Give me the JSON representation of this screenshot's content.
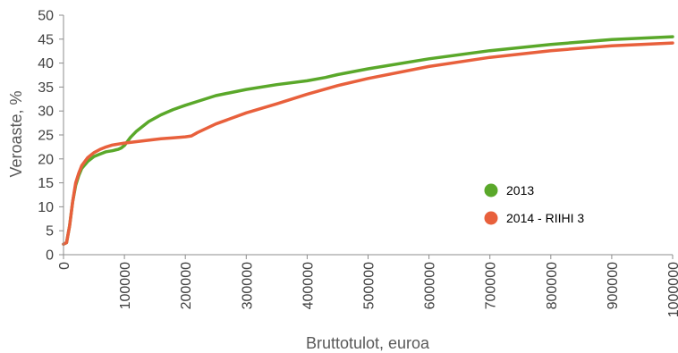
{
  "chart_data": {
    "type": "line",
    "title": "",
    "xlabel": "Bruttotulot, euroa",
    "ylabel": "Veroaste, %",
    "xlim": [
      0,
      1000000
    ],
    "ylim": [
      0,
      50
    ],
    "x_ticks": [
      "0",
      "100000",
      "200000",
      "300000",
      "400000",
      "500000",
      "600000",
      "700000",
      "800000",
      "900000",
      "1000000"
    ],
    "y_ticks": [
      "0",
      "5",
      "10",
      "15",
      "20",
      "25",
      "30",
      "35",
      "40",
      "45",
      "50"
    ],
    "grid": false,
    "legend_position": "right",
    "series": [
      {
        "name": "2013",
        "color": "#5aa82a",
        "points": [
          [
            0,
            2.2
          ],
          [
            5000,
            2.5
          ],
          [
            10000,
            6
          ],
          [
            15000,
            11
          ],
          [
            20000,
            14.5
          ],
          [
            25000,
            16.5
          ],
          [
            30000,
            18
          ],
          [
            40000,
            19.5
          ],
          [
            50000,
            20.5
          ],
          [
            60000,
            21
          ],
          [
            70000,
            21.5
          ],
          [
            80000,
            21.7
          ],
          [
            90000,
            22
          ],
          [
            95000,
            22.3
          ],
          [
            100000,
            22.8
          ],
          [
            110000,
            24.5
          ],
          [
            120000,
            25.8
          ],
          [
            140000,
            27.8
          ],
          [
            160000,
            29.2
          ],
          [
            180000,
            30.3
          ],
          [
            200000,
            31.2
          ],
          [
            220000,
            32
          ],
          [
            250000,
            33.2
          ],
          [
            300000,
            34.5
          ],
          [
            350000,
            35.5
          ],
          [
            400000,
            36.3
          ],
          [
            430000,
            37
          ],
          [
            450000,
            37.6
          ],
          [
            500000,
            38.8
          ],
          [
            600000,
            40.9
          ],
          [
            700000,
            42.6
          ],
          [
            800000,
            43.9
          ],
          [
            900000,
            44.9
          ],
          [
            1000000,
            45.5
          ]
        ]
      },
      {
        "name": "2014 - RIIHI 3",
        "color": "#e8603c",
        "points": [
          [
            0,
            2.2
          ],
          [
            5000,
            2.5
          ],
          [
            10000,
            6
          ],
          [
            15000,
            11
          ],
          [
            20000,
            15
          ],
          [
            25000,
            17
          ],
          [
            30000,
            18.6
          ],
          [
            40000,
            20.3
          ],
          [
            50000,
            21.3
          ],
          [
            60000,
            22
          ],
          [
            70000,
            22.5
          ],
          [
            80000,
            22.9
          ],
          [
            90000,
            23.1
          ],
          [
            100000,
            23.3
          ],
          [
            120000,
            23.6
          ],
          [
            140000,
            23.9
          ],
          [
            160000,
            24.2
          ],
          [
            180000,
            24.4
          ],
          [
            200000,
            24.6
          ],
          [
            210000,
            24.8
          ],
          [
            220000,
            25.5
          ],
          [
            250000,
            27.3
          ],
          [
            300000,
            29.6
          ],
          [
            350000,
            31.5
          ],
          [
            400000,
            33.5
          ],
          [
            450000,
            35.3
          ],
          [
            500000,
            36.8
          ],
          [
            600000,
            39.3
          ],
          [
            700000,
            41.2
          ],
          [
            800000,
            42.6
          ],
          [
            900000,
            43.6
          ],
          [
            1000000,
            44.2
          ]
        ]
      }
    ]
  }
}
